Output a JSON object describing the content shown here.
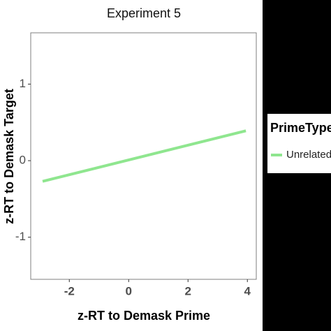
{
  "chart_data": {
    "type": "line",
    "title": "Experiment 5",
    "x_label": "z-RT to Demask Prime",
    "y_label": "z-RT to Demask Target",
    "x": [
      -2.9,
      3.95
    ],
    "series": [
      {
        "name": "Unrelated",
        "color": "#8fe68f",
        "values": [
          -0.27,
          0.39
        ]
      }
    ],
    "legend_title": "PrimeType",
    "legend": "right",
    "xlim": [
      -3.3,
      4.3
    ],
    "xticks": [
      -2,
      0,
      2,
      4
    ],
    "ylim": [
      -1.55,
      1.67
    ],
    "yticks": [
      -1,
      0,
      1
    ],
    "grid": false
  }
}
